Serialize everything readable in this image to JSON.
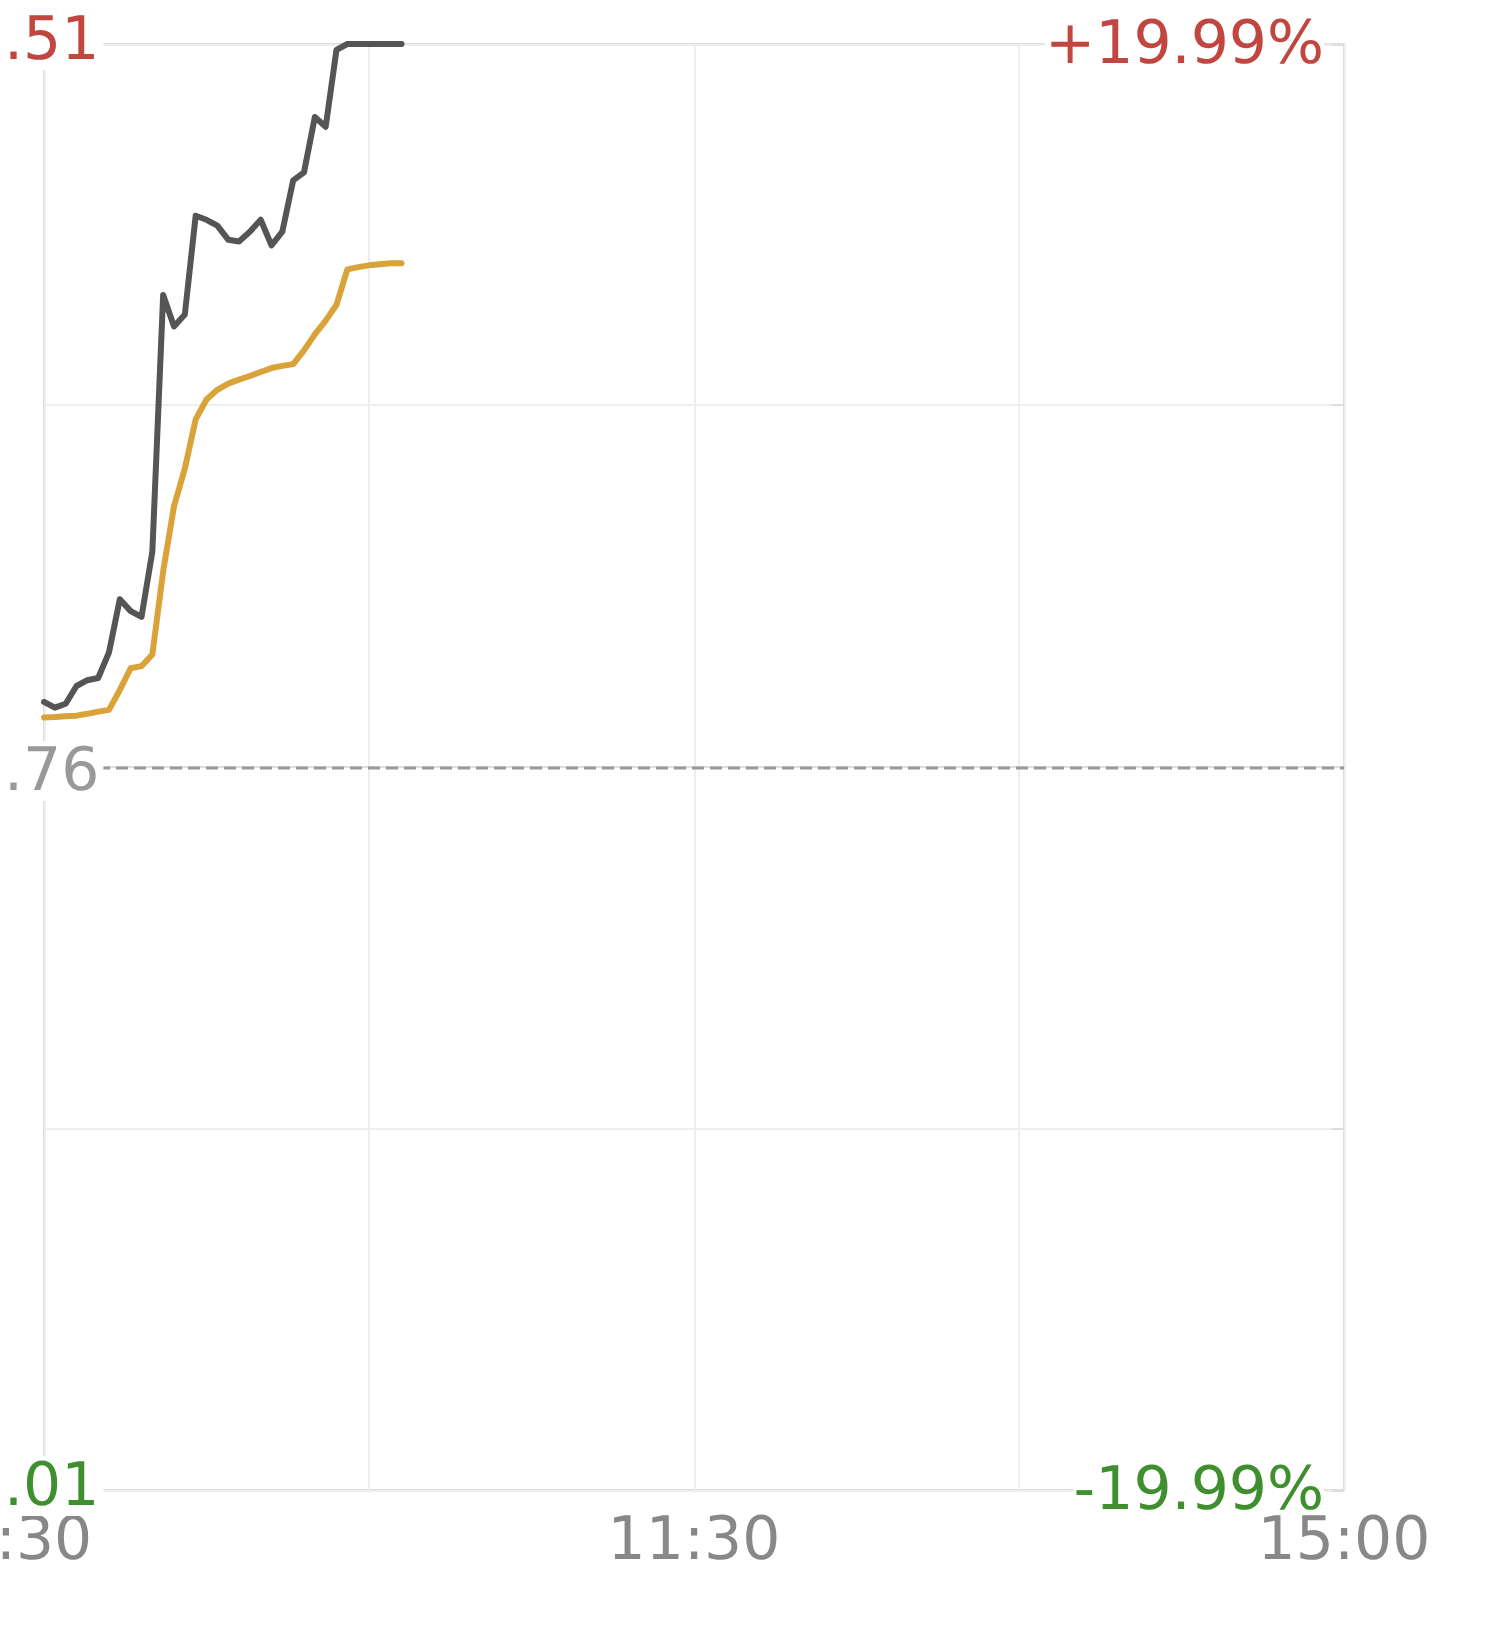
{
  "chart_data": {
    "type": "line",
    "grid": true,
    "marker": "none",
    "line_style": "solid",
    "categories": [
      ":30",
      null,
      null,
      null,
      null,
      null,
      null,
      null,
      null,
      null,
      null,
      null,
      null,
      null,
      null,
      null,
      null,
      null,
      null,
      null,
      null,
      null,
      null,
      null,
      null,
      null,
      null,
      null,
      null,
      null,
      null,
      null,
      null,
      null,
      null,
      null,
      null,
      null,
      null,
      null,
      null,
      null,
      null,
      null,
      null,
      null,
      null,
      null,
      null,
      null,
      null,
      null,
      null,
      null,
      null,
      null,
      null,
      null,
      null,
      null,
      "11:30",
      null,
      null,
      null,
      null,
      null,
      null,
      null,
      null,
      null,
      null,
      null,
      null,
      null,
      null,
      null,
      null,
      null,
      null,
      null,
      null,
      null,
      null,
      null,
      null,
      null,
      null,
      null,
      null,
      null,
      null,
      null,
      null,
      null,
      null,
      null,
      null,
      null,
      null,
      null,
      null,
      null,
      null,
      null,
      null,
      null,
      null,
      null,
      null,
      null,
      null,
      null,
      null,
      null,
      null,
      null,
      null,
      null,
      null,
      null,
      "15:00"
    ],
    "ylim": [
      -19.99,
      19.99
    ],
    "yticks": [
      {
        "value": 19.99,
        "label": "+19.99%"
      },
      {
        "value": 10,
        "label": null
      },
      {
        "value": 0,
        "label": null
      },
      {
        "value": -10,
        "label": null
      },
      {
        "value": -19.99,
        "label": "-19.99%"
      }
    ],
    "annotations": [
      ".51",
      ".76",
      ".01"
    ],
    "ref_lines": [
      {
        "axis": "y",
        "value": 0,
        "color": "#999999",
        "line_style": "dashed"
      }
    ],
    "series": [
      {
        "color": "#555555",
        "values": [
          1.8,
          1.64,
          1.75,
          2.24,
          2.4,
          2.46,
          3.17,
          4.64,
          4.31,
          4.15,
          5.95,
          13.05,
          12.18,
          12.51,
          15.24,
          15.13,
          14.97,
          14.58,
          14.53,
          14.8,
          15.13,
          14.42,
          14.8,
          16.22,
          16.44,
          17.97,
          17.7,
          19.83,
          19.99,
          19.99,
          19.99,
          19.99,
          19.99,
          19.99,
          null,
          null,
          null,
          null,
          null,
          null,
          null,
          null,
          null,
          null,
          null,
          null,
          null,
          null,
          null,
          null,
          null,
          null,
          null,
          null,
          null,
          null,
          null,
          null,
          null,
          null,
          null,
          null,
          null,
          null,
          null,
          null,
          null,
          null,
          null,
          null,
          null,
          null,
          null,
          null,
          null,
          null,
          null,
          null,
          null,
          null,
          null,
          null,
          null,
          null,
          null,
          null,
          null,
          null,
          null,
          null,
          null,
          null,
          null,
          null,
          null,
          null,
          null,
          null,
          null,
          null,
          null,
          null,
          null,
          null,
          null,
          null,
          null,
          null,
          null,
          null,
          null,
          null,
          null,
          null,
          null,
          null,
          null,
          null,
          null,
          null,
          null
        ]
      },
      {
        "color": "#d9a33a",
        "values": [
          1.37,
          1.38,
          1.4,
          1.42,
          1.47,
          1.53,
          1.58,
          2.13,
          2.73,
          2.79,
          3.11,
          5.41,
          7.21,
          8.25,
          9.61,
          10.16,
          10.43,
          10.6,
          10.71,
          10.81,
          10.92,
          11.03,
          11.09,
          11.14,
          11.52,
          11.96,
          12.34,
          12.78,
          13.76,
          13.82,
          13.87,
          13.9,
          13.93,
          13.93,
          null,
          null,
          null,
          null,
          null,
          null,
          null,
          null,
          null,
          null,
          null,
          null,
          null,
          null,
          null,
          null,
          null,
          null,
          null,
          null,
          null,
          null,
          null,
          null,
          null,
          null,
          null,
          null,
          null,
          null,
          null,
          null,
          null,
          null,
          null,
          null,
          null,
          null,
          null,
          null,
          null,
          null,
          null,
          null,
          null,
          null,
          null,
          null,
          null,
          null,
          null,
          null,
          null,
          null,
          null,
          null,
          null,
          null,
          null,
          null,
          null,
          null,
          null,
          null,
          null,
          null,
          null,
          null,
          null,
          null,
          null,
          null,
          null,
          null,
          null,
          null,
          null,
          null,
          null,
          null,
          null,
          null,
          null,
          null,
          null,
          null,
          null
        ]
      }
    ]
  }
}
